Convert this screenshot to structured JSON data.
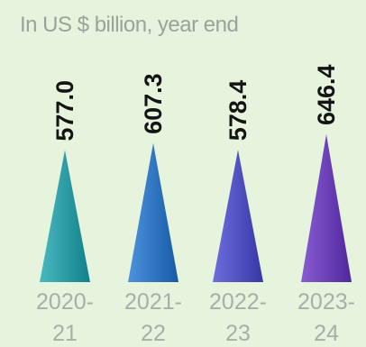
{
  "chart_data": {
    "type": "bar",
    "subtitle": "In US $ billion, year end",
    "categories": [
      {
        "line1": "2020-",
        "line2": "21"
      },
      {
        "line1": "2021-",
        "line2": "22"
      },
      {
        "line1": "2022-",
        "line2": "23"
      },
      {
        "line1": "2023-",
        "line2": "24"
      }
    ],
    "values": [
      577.0,
      607.3,
      578.4,
      646.4
    ],
    "value_labels": [
      "577.0",
      "607.3",
      "578.4",
      "646.4"
    ],
    "colors": [
      "#2b9aa3",
      "#2f74bf",
      "#4f4fc0",
      "#6a3fb5"
    ],
    "ylim": [
      0,
      660
    ]
  }
}
